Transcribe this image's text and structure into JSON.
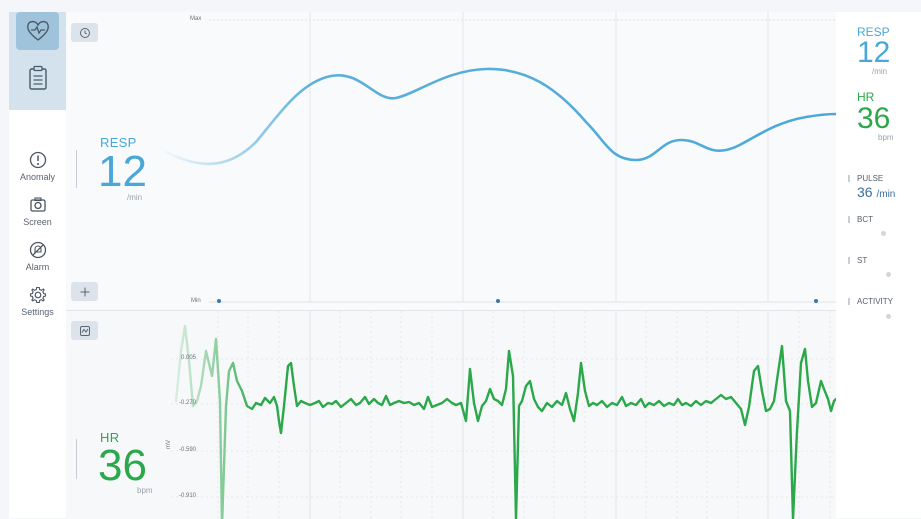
{
  "sidebar": {
    "top_items": [
      {
        "icon": "heart-monitor-icon",
        "active": true
      },
      {
        "icon": "clipboard-icon",
        "active": false
      }
    ],
    "items": [
      {
        "label": "Anomaly",
        "icon": "alert-circle-icon"
      },
      {
        "label": "Screen",
        "icon": "camera-icon"
      },
      {
        "label": "Alarm",
        "icon": "alarm-off-icon"
      },
      {
        "label": "Settings",
        "icon": "gear-icon"
      }
    ]
  },
  "resp_panel": {
    "axis_max": "Max",
    "axis_min": "Min",
    "label": "RESP",
    "value": "12",
    "unit": "/min",
    "color": "#4aa8d8"
  },
  "hr_panel": {
    "y_ticks": [
      "0.005",
      "-0.270",
      "-0.590",
      "-0.910"
    ],
    "y_unit": "mV",
    "label": "HR",
    "value": "36",
    "unit": "bpm",
    "color": "#2aa84a"
  },
  "right_panel": {
    "resp": {
      "label": "RESP",
      "value": "12",
      "unit": "/min"
    },
    "hr": {
      "label": "HR",
      "value": "36",
      "unit": "bpm"
    },
    "pulse": {
      "label": "PULSE",
      "value": "36",
      "unit": "/min"
    },
    "bct": {
      "label": "BCT"
    },
    "st": {
      "label": "ST"
    },
    "activity": {
      "label": "ACTIVITY"
    }
  },
  "colors": {
    "resp": "#4aa8d8",
    "hr": "#2aa84a",
    "sidebar_top": "#d3e2ec",
    "active": "#9fc3da"
  }
}
